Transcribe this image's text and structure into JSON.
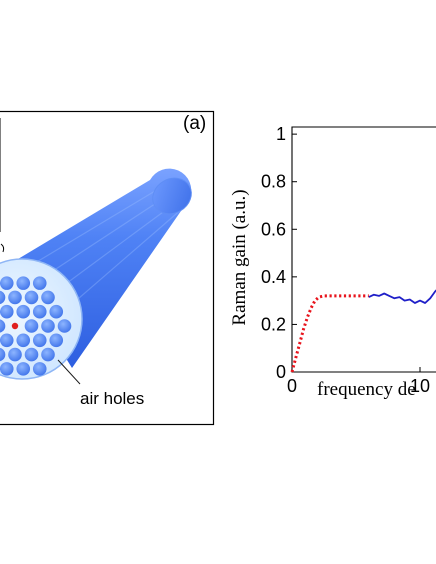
{
  "panel_a": {
    "label": "(a)",
    "callout": "air holes",
    "colors": {
      "fiber_body": "#3f74f0",
      "fiber_shade": "#2e5fe0",
      "fiber_highlight": "#7aa2ff",
      "end_face": "#d9ecff",
      "hole": "#5b94f7",
      "core": "#e02020",
      "frame": "#000000"
    }
  },
  "panel_b": {
    "chart_data": {
      "type": "line",
      "xlabel": "frequency de",
      "ylabel": "Raman gain (a.u.)",
      "x_ticks": [
        "0",
        "10"
      ],
      "y_ticks": [
        "0",
        "0.2",
        "0.4",
        "0.6",
        "0.8",
        "1"
      ],
      "xlim": [
        0,
        12.5
      ],
      "ylim": [
        0,
        1.03
      ],
      "series": [
        {
          "style": "dotted",
          "color": "#e8141c",
          "x": [
            0,
            0.3,
            0.6,
            0.9,
            1.2,
            1.5,
            1.8,
            2.1,
            2.5,
            3.0,
            3.5,
            4.0,
            4.5,
            5.0,
            5.5,
            6.0
          ],
          "y": [
            0.0,
            0.06,
            0.12,
            0.18,
            0.23,
            0.27,
            0.3,
            0.315,
            0.32,
            0.32,
            0.32,
            0.32,
            0.32,
            0.32,
            0.32,
            0.32
          ]
        },
        {
          "style": "solid",
          "color": "#1f1fc8",
          "x": [
            6.0,
            6.4,
            6.8,
            7.2,
            7.6,
            8.0,
            8.4,
            8.8,
            9.2,
            9.6,
            10.0,
            10.4,
            10.8,
            11.2,
            11.6,
            12.0,
            12.5
          ],
          "y": [
            0.315,
            0.325,
            0.32,
            0.33,
            0.32,
            0.31,
            0.315,
            0.3,
            0.305,
            0.29,
            0.3,
            0.29,
            0.31,
            0.34,
            0.36,
            0.38,
            0.39
          ]
        }
      ]
    }
  }
}
